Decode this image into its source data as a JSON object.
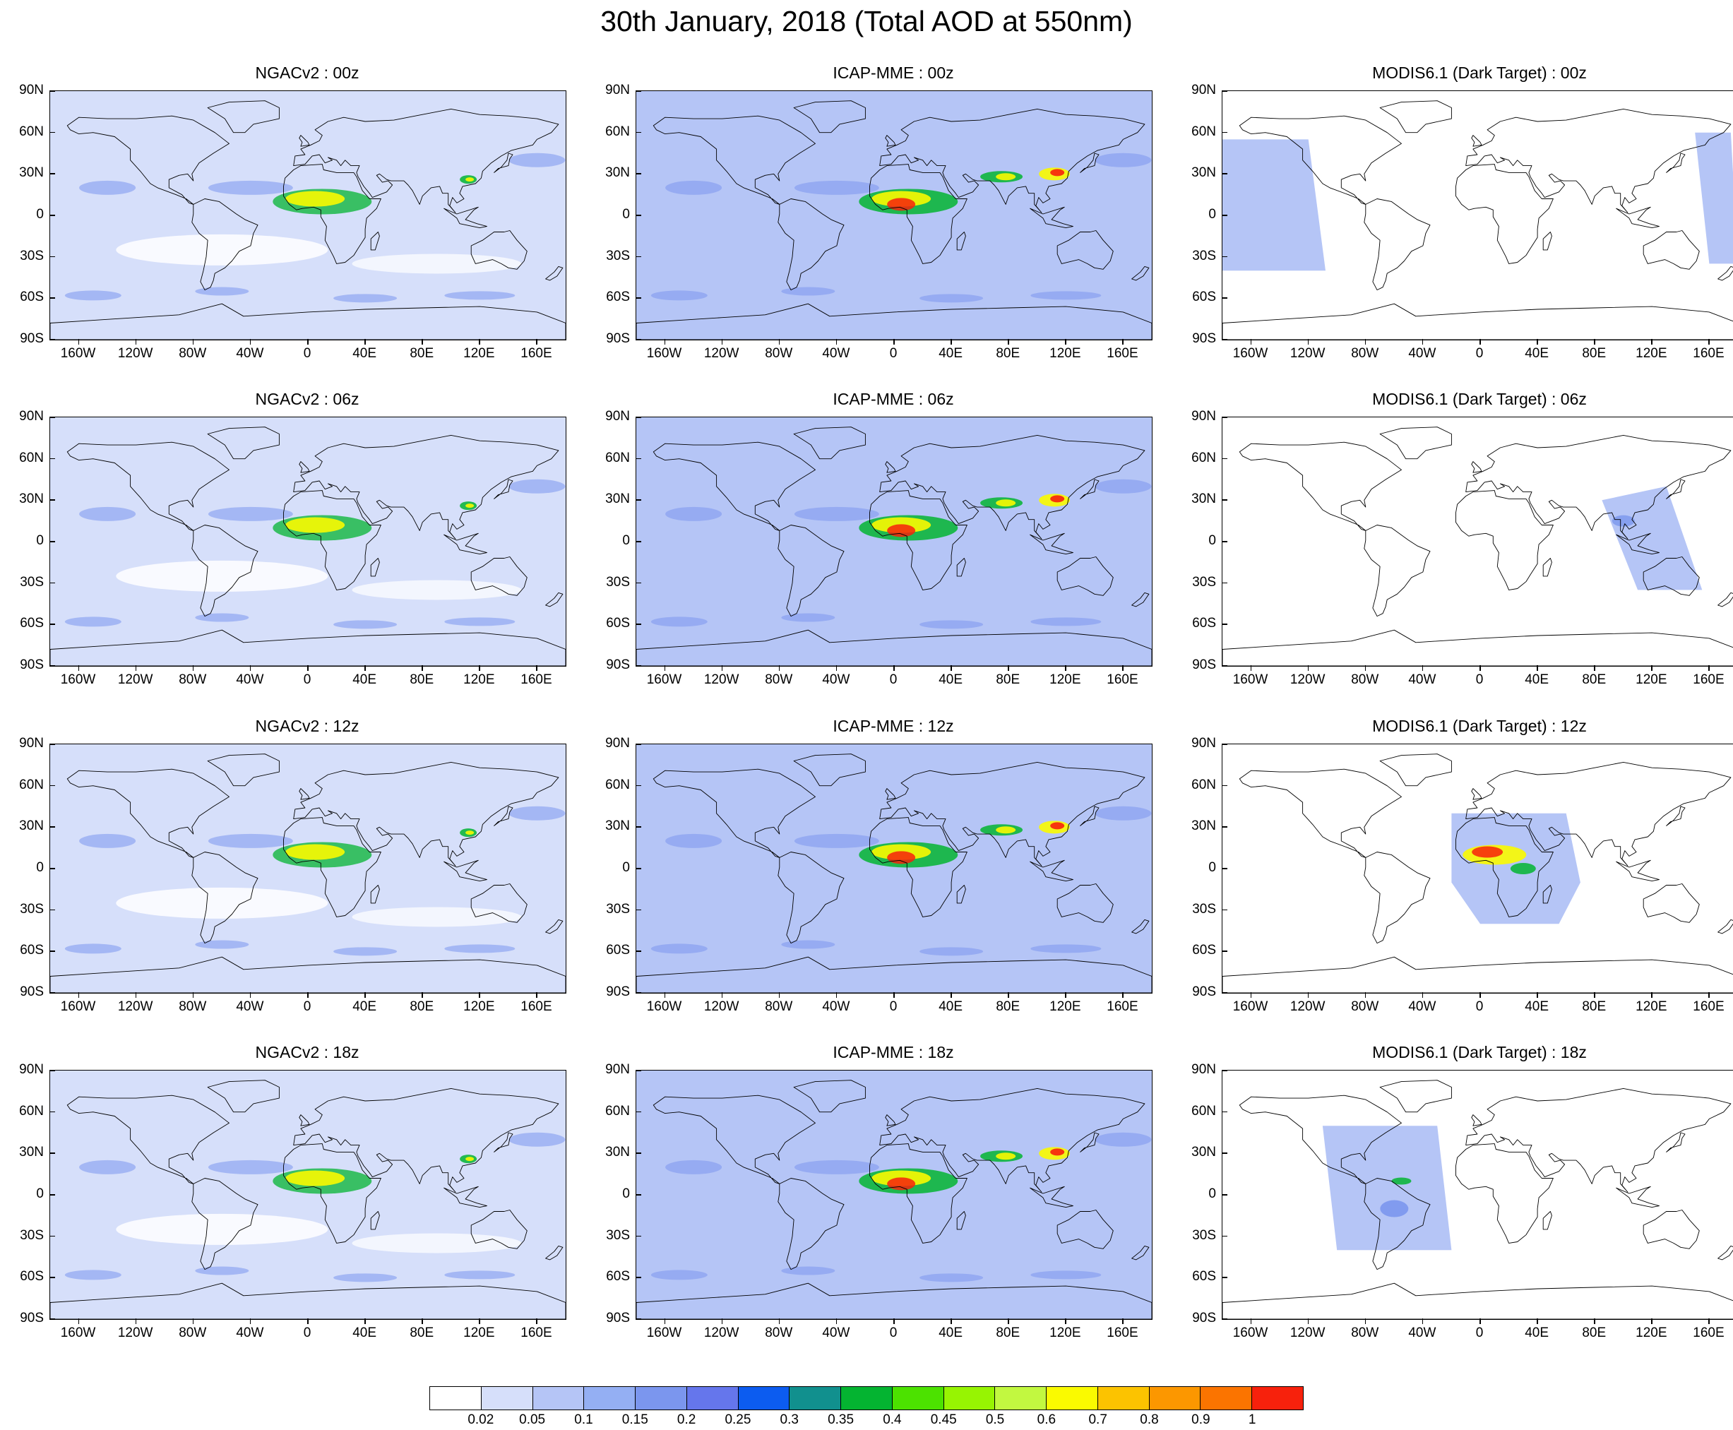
{
  "title": "30th January, 2018 (Total AOD at 550nm)",
  "lat_labels": [
    "90N",
    "60N",
    "30N",
    "0",
    "30S",
    "60S",
    "90S"
  ],
  "lon_labels": [
    "160W",
    "120W",
    "80W",
    "40W",
    "0",
    "40E",
    "80E",
    "120E",
    "160E"
  ],
  "panels": [
    {
      "title": "NGACv2 : 00z"
    },
    {
      "title": "ICAP-MME : 00z"
    },
    {
      "title": "MODIS6.1 (Dark Target) : 00z"
    },
    {
      "title": "NGACv2 : 06z"
    },
    {
      "title": "ICAP-MME : 06z"
    },
    {
      "title": "MODIS6.1 (Dark Target) : 06z"
    },
    {
      "title": "NGACv2 : 12z"
    },
    {
      "title": "ICAP-MME : 12z"
    },
    {
      "title": "MODIS6.1 (Dark Target) : 12z"
    },
    {
      "title": "NGACv2 : 18z"
    },
    {
      "title": "ICAP-MME : 18z"
    },
    {
      "title": "MODIS6.1 (Dark Target) : 18z"
    }
  ],
  "colorbar": {
    "labels": [
      "0.02",
      "0.05",
      "0.1",
      "0.15",
      "0.2",
      "0.25",
      "0.3",
      "0.35",
      "0.4",
      "0.45",
      "0.5",
      "0.6",
      "0.7",
      "0.8",
      "0.9",
      "1"
    ],
    "colors": [
      "#ffffff",
      "#d6dffa",
      "#b5c5f6",
      "#94aff3",
      "#7b96ee",
      "#6576ec",
      "#0c5cf0",
      "#11908e",
      "#04b431",
      "#4ce200",
      "#97f402",
      "#c2f840",
      "#fafa00",
      "#fcc300",
      "#fc9700",
      "#fb7400",
      "#f7210c"
    ]
  },
  "colors": {
    "ocean_light": "#d6dffa",
    "ocean_mid": "#b5c5f6",
    "blue": "#7b96ee",
    "green": "#04b431",
    "yellow": "#fafa00",
    "red": "#f7210c"
  }
}
